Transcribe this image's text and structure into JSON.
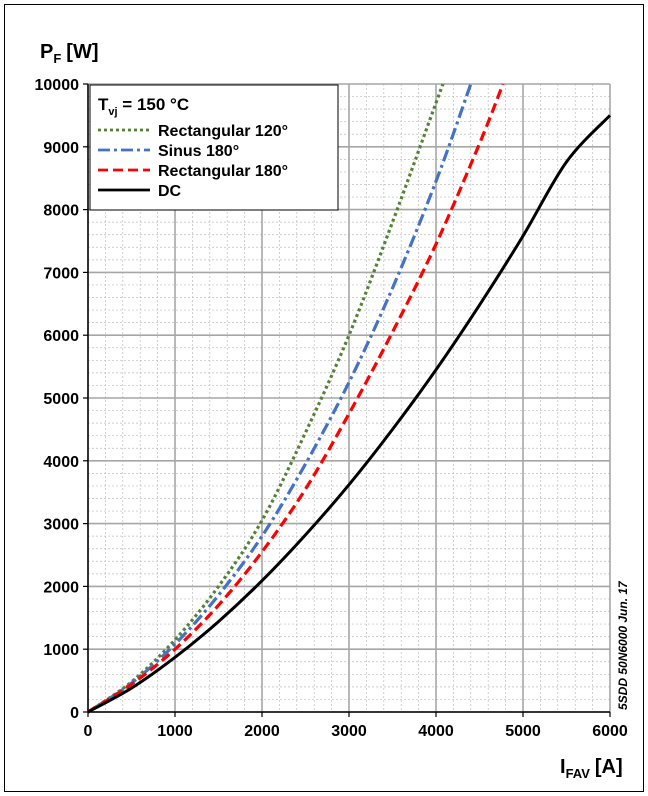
{
  "chart_data": {
    "type": "line",
    "y_title_main": "P",
    "y_title_sub": "F",
    "y_title_unit": "[W]",
    "x_title_main": "I",
    "x_title_sub": "FAV",
    "x_title_unit": "[A]",
    "xlim": [
      0,
      6000
    ],
    "ylim": [
      0,
      10000
    ],
    "x_ticks": [
      0,
      1000,
      2000,
      3000,
      4000,
      5000,
      6000
    ],
    "y_ticks": [
      0,
      1000,
      2000,
      3000,
      4000,
      5000,
      6000,
      7000,
      8000,
      9000,
      10000
    ],
    "grid": "major and minor",
    "legend_position": "top-left",
    "condition_main": "T",
    "condition_sub": "vj",
    "condition_value": " = 150 °C",
    "side_note": "5SDD 50N6000 Jun. 17",
    "series": [
      {
        "name": "Rectangular 120°",
        "color": "#548235",
        "dash": "dotted",
        "x": [
          0,
          500,
          1000,
          1500,
          2000,
          2500,
          3000,
          3500,
          4000,
          4080
        ],
        "y": [
          0,
          480,
          1150,
          2000,
          3050,
          4450,
          6000,
          7800,
          9700,
          10000
        ]
      },
      {
        "name": "Sinus 180°",
        "color": "#4472c4",
        "dash": "dashdot",
        "x": [
          0,
          500,
          1000,
          1500,
          2000,
          2500,
          3000,
          3500,
          4000,
          4400
        ],
        "y": [
          0,
          460,
          1080,
          1860,
          2800,
          3950,
          5250,
          6750,
          8450,
          10000
        ]
      },
      {
        "name": "Rectangular 180°",
        "color": "#ff0000",
        "dash": "dashed",
        "x": [
          0,
          500,
          1000,
          1500,
          2000,
          2500,
          3000,
          3500,
          4000,
          4500,
          4770
        ],
        "y": [
          0,
          440,
          1000,
          1700,
          2550,
          3550,
          4750,
          6050,
          7450,
          9050,
          10000
        ]
      },
      {
        "name": "DC",
        "color": "#000000",
        "dash": "solid",
        "x": [
          0,
          500,
          1000,
          1500,
          2000,
          2500,
          3000,
          3500,
          4000,
          4500,
          5000,
          5500,
          6000
        ],
        "y": [
          0,
          380,
          870,
          1440,
          2090,
          2820,
          3620,
          4500,
          5450,
          6480,
          7580,
          8760,
          9500
        ]
      }
    ]
  }
}
